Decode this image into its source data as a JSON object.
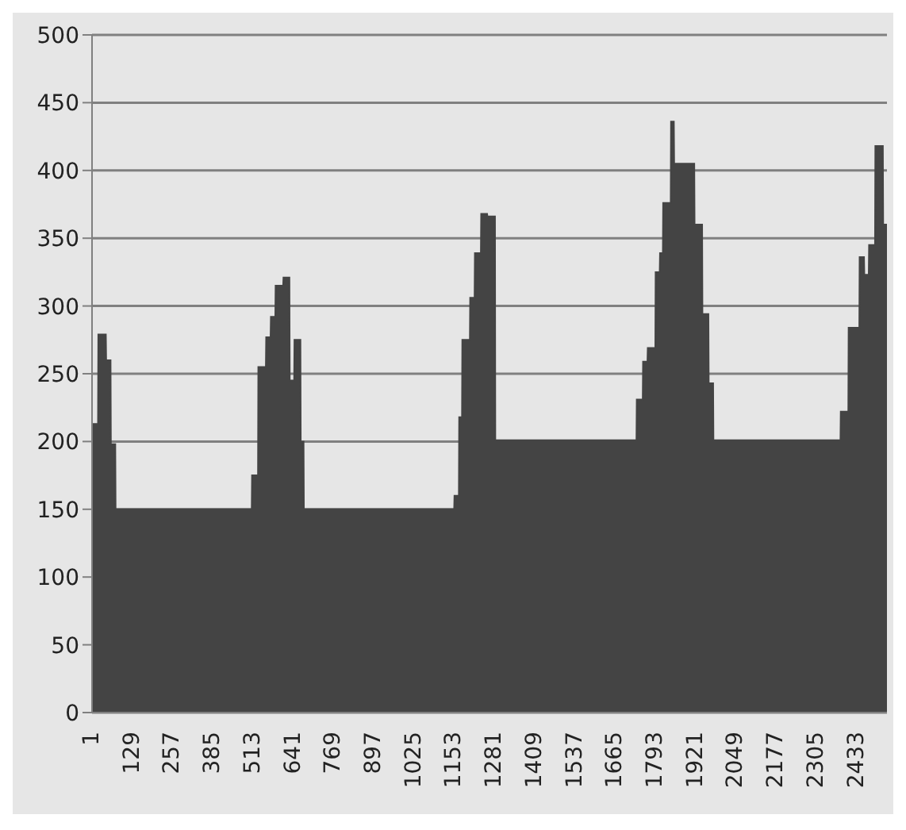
{
  "chart_data": {
    "type": "area",
    "x": [
      1,
      20,
      21,
      45,
      46,
      60,
      61,
      75,
      76,
      509,
      510,
      529,
      530,
      554,
      555,
      569,
      570,
      584,
      585,
      609,
      610,
      629,
      630,
      644,
      645,
      664,
      665,
      674,
      675,
      1153,
      1154,
      1168,
      1169,
      1178,
      1179,
      1203,
      1204,
      1218,
      1219,
      1238,
      1239,
      1258,
      1259,
      1283,
      1284,
      1733,
      1734,
      1753,
      1754,
      1768,
      1769,
      1793,
      1794,
      1807,
      1808,
      1817,
      1818,
      1842,
      1843,
      1852,
      1853,
      1917,
      1918,
      1942,
      1943,
      1962,
      1963,
      1977,
      1978,
      2382,
      2383,
      2407,
      2408,
      2442,
      2443,
      2457,
      2458,
      2472,
      2473,
      2492,
      2493,
      2517,
      2518,
      2530
    ],
    "series": [
      {
        "color": "#444444",
        "values": [
          213,
          213,
          279,
          279,
          260,
          260,
          198,
          198,
          150,
          150,
          175,
          175,
          255,
          255,
          277,
          277,
          292,
          292,
          315,
          315,
          321,
          321,
          245,
          245,
          275,
          275,
          200,
          200,
          150,
          150,
          160,
          160,
          218,
          218,
          275,
          275,
          306,
          306,
          339,
          339,
          368,
          368,
          366,
          366,
          201,
          201,
          231,
          231,
          259,
          259,
          269,
          269,
          325,
          325,
          339,
          339,
          376,
          376,
          436,
          436,
          405,
          405,
          360,
          360,
          294,
          294,
          243,
          243,
          201,
          201,
          222,
          222,
          284,
          284,
          336,
          336,
          323,
          323,
          345,
          345,
          418,
          418,
          360,
          360
        ]
      }
    ],
    "xlim": [
      1,
      2530
    ],
    "xticks": [
      1,
      129,
      257,
      385,
      513,
      641,
      769,
      897,
      1025,
      1153,
      1281,
      1409,
      1537,
      1665,
      1793,
      1921,
      2049,
      2177,
      2305,
      2433
    ],
    "ylim": [
      0,
      500
    ],
    "yticks": [
      0,
      50,
      100,
      150,
      200,
      250,
      300,
      350,
      400,
      450,
      500
    ],
    "grid": "y"
  }
}
